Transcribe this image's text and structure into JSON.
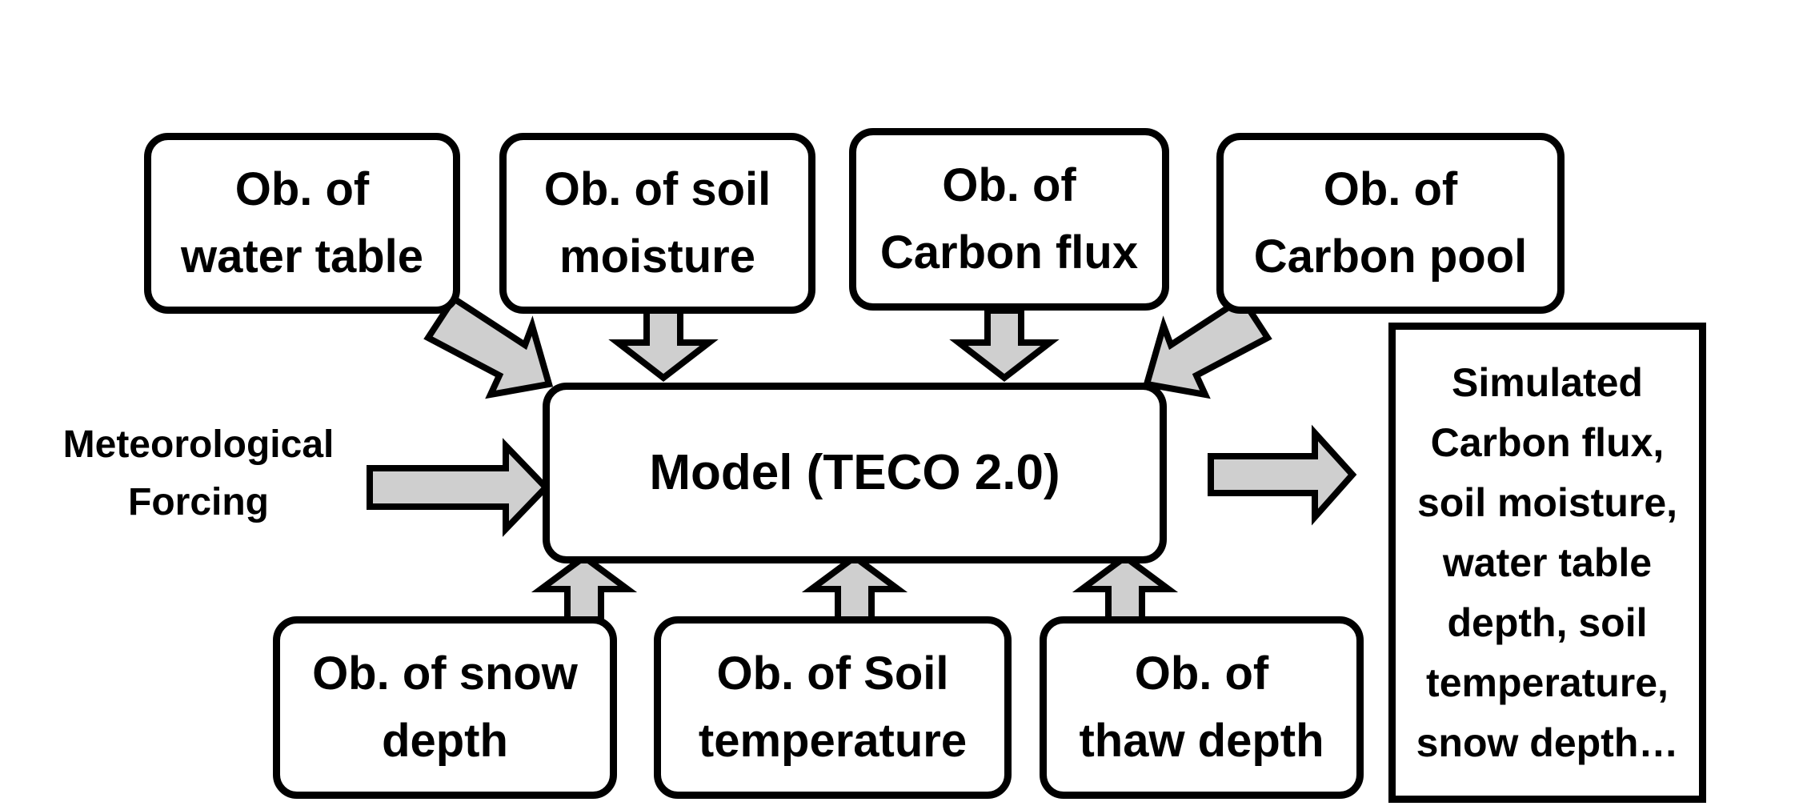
{
  "observations_top": [
    {
      "id": "water-table",
      "label": "Ob. of\nwater table"
    },
    {
      "id": "soil-moisture",
      "label": "Ob. of soil\nmoisture"
    },
    {
      "id": "carbon-flux",
      "label": "Ob. of\nCarbon flux"
    },
    {
      "id": "carbon-pool",
      "label": "Ob. of\nCarbon pool"
    }
  ],
  "observations_bottom": [
    {
      "id": "snow-depth",
      "label": "Ob. of snow\ndepth"
    },
    {
      "id": "soil-temperature",
      "label": "Ob. of Soil\ntemperature"
    },
    {
      "id": "thaw-depth",
      "label": "Ob. of\nthaw depth"
    }
  ],
  "model": {
    "label": "Model (TECO 2.0)"
  },
  "forcing": {
    "label": "Meteorological\nForcing"
  },
  "output": {
    "label": "Simulated\nCarbon flux,\nsoil moisture,\nwater table\ndepth, soil\ntemperature,\nsnow depth…"
  },
  "colors": {
    "arrow_fill": "#cfcfcf",
    "stroke": "#000000",
    "background": "#ffffff"
  }
}
